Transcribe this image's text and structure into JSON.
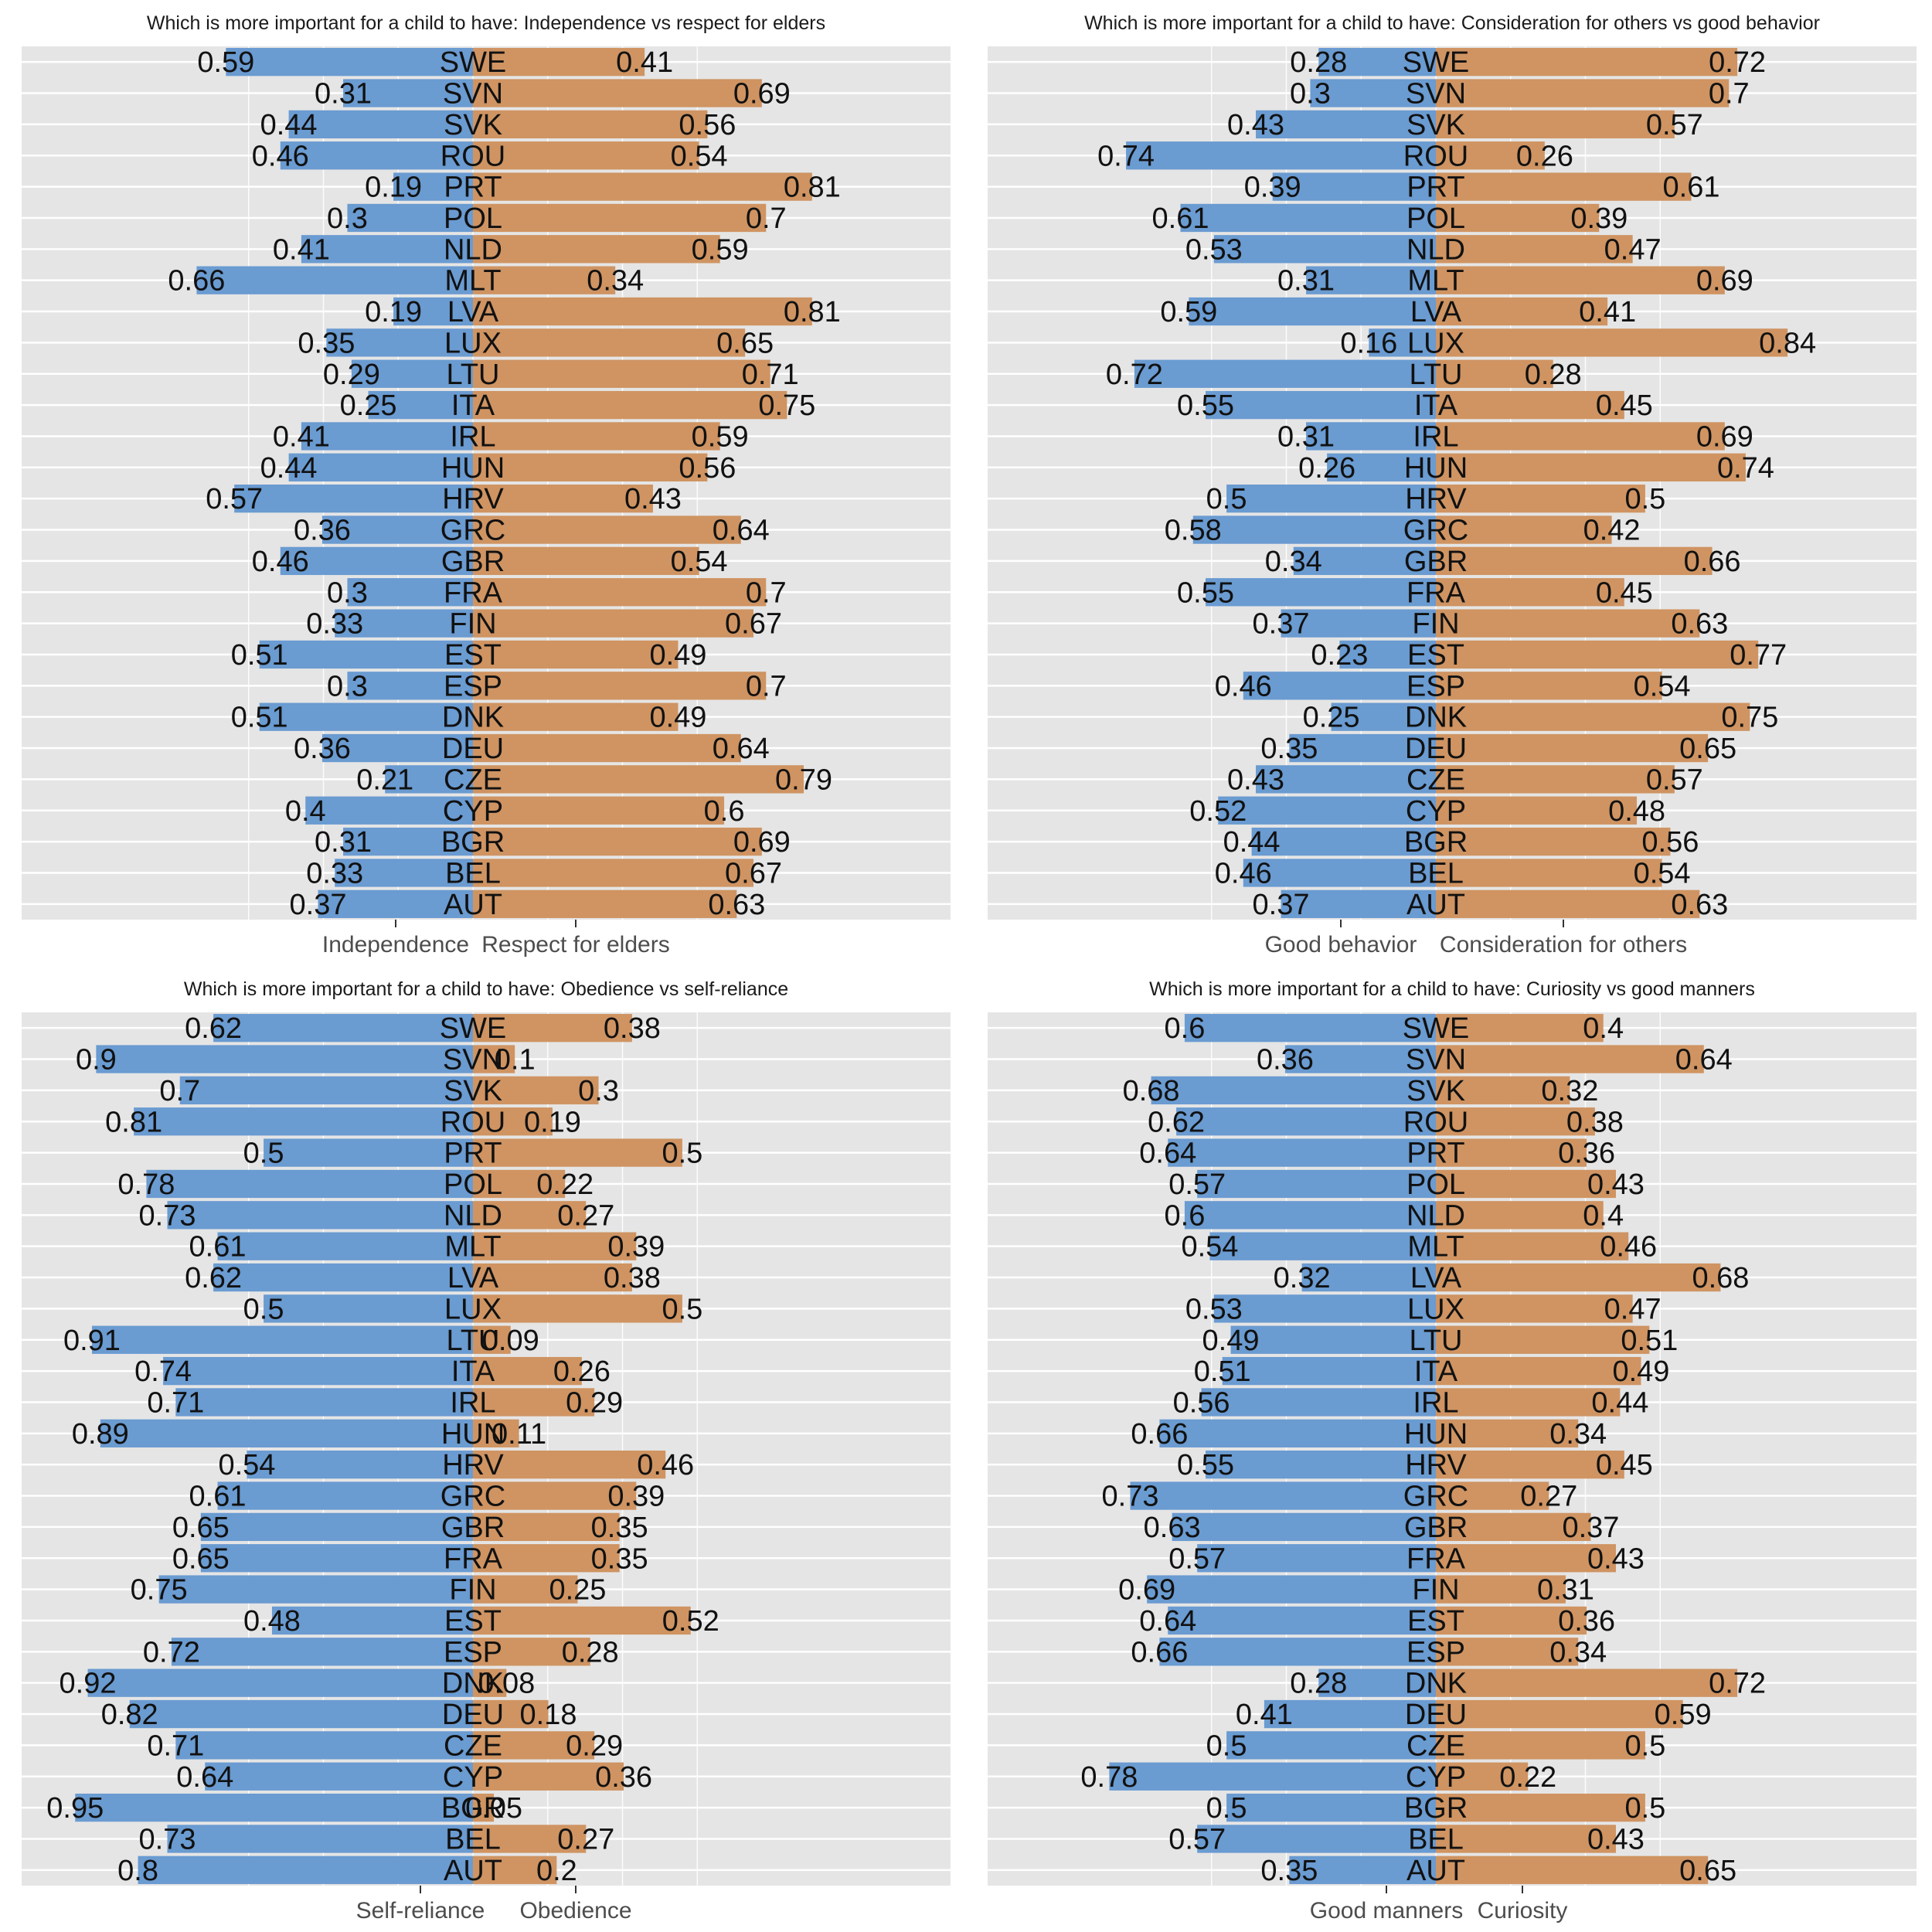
{
  "colors": {
    "left_bar": "#6a9bd1",
    "right_bar": "#cf9462",
    "panel_bg": "#e5e5e5",
    "grid": "#ffffff",
    "text": "#111111"
  },
  "chart_data": [
    {
      "type": "bar",
      "orientation": "horizontal-diverging",
      "title": "Which is more important for a child to have: Independence vs respect for elders",
      "left_label": "Independence",
      "right_label": "Respect for elders",
      "categories": [
        "SWE",
        "SVN",
        "SVK",
        "ROU",
        "PRT",
        "POL",
        "NLD",
        "MLT",
        "LVA",
        "LUX",
        "LTU",
        "ITA",
        "IRL",
        "HUN",
        "HRV",
        "GRC",
        "GBR",
        "FRA",
        "FIN",
        "EST",
        "ESP",
        "DNK",
        "DEU",
        "CZE",
        "CYP",
        "BGR",
        "BEL",
        "AUT"
      ],
      "series": [
        {
          "name": "Independence",
          "values": [
            0.59,
            0.31,
            0.44,
            0.46,
            0.19,
            0.3,
            0.41,
            0.66,
            0.19,
            0.35,
            0.29,
            0.25,
            0.41,
            0.44,
            0.57,
            0.36,
            0.46,
            0.3,
            0.33,
            0.51,
            0.3,
            0.51,
            0.36,
            0.21,
            0.4,
            0.31,
            0.33,
            0.37
          ]
        },
        {
          "name": "Respect for elders",
          "values": [
            0.41,
            0.69,
            0.56,
            0.54,
            0.81,
            0.7,
            0.59,
            0.34,
            0.81,
            0.65,
            0.71,
            0.75,
            0.59,
            0.56,
            0.43,
            0.64,
            0.54,
            0.7,
            0.67,
            0.49,
            0.7,
            0.49,
            0.64,
            0.79,
            0.6,
            0.69,
            0.67,
            0.63
          ]
        }
      ],
      "grid": true
    },
    {
      "type": "bar",
      "orientation": "horizontal-diverging",
      "title": "Which is more important for a child to have: Consideration for others vs good behavior",
      "left_label": "Good behavior",
      "right_label": "Consideration for others",
      "categories": [
        "SWE",
        "SVN",
        "SVK",
        "ROU",
        "PRT",
        "POL",
        "NLD",
        "MLT",
        "LVA",
        "LUX",
        "LTU",
        "ITA",
        "IRL",
        "HUN",
        "HRV",
        "GRC",
        "GBR",
        "FRA",
        "FIN",
        "EST",
        "ESP",
        "DNK",
        "DEU",
        "CZE",
        "CYP",
        "BGR",
        "BEL",
        "AUT"
      ],
      "series": [
        {
          "name": "Good behavior",
          "values": [
            0.28,
            0.3,
            0.43,
            0.74,
            0.39,
            0.61,
            0.53,
            0.31,
            0.59,
            0.16,
            0.72,
            0.55,
            0.31,
            0.26,
            0.5,
            0.58,
            0.34,
            0.55,
            0.37,
            0.23,
            0.46,
            0.25,
            0.35,
            0.43,
            0.52,
            0.44,
            0.46,
            0.37
          ]
        },
        {
          "name": "Consideration for others",
          "values": [
            0.72,
            0.7,
            0.57,
            0.26,
            0.61,
            0.39,
            0.47,
            0.69,
            0.41,
            0.84,
            0.28,
            0.45,
            0.69,
            0.74,
            0.5,
            0.42,
            0.66,
            0.45,
            0.63,
            0.77,
            0.54,
            0.75,
            0.65,
            0.57,
            0.48,
            0.56,
            0.54,
            0.63
          ]
        }
      ],
      "grid": true
    },
    {
      "type": "bar",
      "orientation": "horizontal-diverging",
      "title": "Which is more important for a child to have: Obedience vs self-reliance",
      "left_label": "Self-reliance",
      "right_label": "Obedience",
      "categories": [
        "SWE",
        "SVN",
        "SVK",
        "ROU",
        "PRT",
        "POL",
        "NLD",
        "MLT",
        "LVA",
        "LUX",
        "LTU",
        "ITA",
        "IRL",
        "HUN",
        "HRV",
        "GRC",
        "GBR",
        "FRA",
        "FIN",
        "EST",
        "ESP",
        "DNK",
        "DEU",
        "CZE",
        "CYP",
        "BGR",
        "BEL",
        "AUT"
      ],
      "series": [
        {
          "name": "Self-reliance",
          "values": [
            0.62,
            0.9,
            0.7,
            0.81,
            0.5,
            0.78,
            0.73,
            0.61,
            0.62,
            0.5,
            0.91,
            0.74,
            0.71,
            0.89,
            0.54,
            0.61,
            0.65,
            0.65,
            0.75,
            0.48,
            0.72,
            0.92,
            0.82,
            0.71,
            0.64,
            0.95,
            0.73,
            0.8
          ]
        },
        {
          "name": "Obedience",
          "values": [
            0.38,
            0.1,
            0.3,
            0.19,
            0.5,
            0.22,
            0.27,
            0.39,
            0.38,
            0.5,
            0.09,
            0.26,
            0.29,
            0.11,
            0.46,
            0.39,
            0.35,
            0.35,
            0.25,
            0.52,
            0.28,
            0.08,
            0.18,
            0.29,
            0.36,
            0.05,
            0.27,
            0.2
          ]
        }
      ],
      "grid": true
    },
    {
      "type": "bar",
      "orientation": "horizontal-diverging",
      "title": "Which is more important for a child to have: Curiosity vs good manners",
      "left_label": "Good manners",
      "right_label": "Curiosity",
      "categories": [
        "SWE",
        "SVN",
        "SVK",
        "ROU",
        "PRT",
        "POL",
        "NLD",
        "MLT",
        "LVA",
        "LUX",
        "LTU",
        "ITA",
        "IRL",
        "HUN",
        "HRV",
        "GRC",
        "GBR",
        "FRA",
        "FIN",
        "EST",
        "ESP",
        "DNK",
        "DEU",
        "CZE",
        "CYP",
        "BGR",
        "BEL",
        "AUT"
      ],
      "series": [
        {
          "name": "Good manners",
          "values": [
            0.6,
            0.36,
            0.68,
            0.62,
            0.64,
            0.57,
            0.6,
            0.54,
            0.32,
            0.53,
            0.49,
            0.51,
            0.56,
            0.66,
            0.55,
            0.73,
            0.63,
            0.57,
            0.69,
            0.64,
            0.66,
            0.28,
            0.41,
            0.5,
            0.78,
            0.5,
            0.57,
            0.35
          ]
        },
        {
          "name": "Curiosity",
          "values": [
            0.4,
            0.64,
            0.32,
            0.38,
            0.36,
            0.43,
            0.4,
            0.46,
            0.68,
            0.47,
            0.51,
            0.49,
            0.44,
            0.34,
            0.45,
            0.27,
            0.37,
            0.43,
            0.31,
            0.36,
            0.34,
            0.72,
            0.59,
            0.5,
            0.22,
            0.5,
            0.43,
            0.65
          ]
        }
      ],
      "grid": true
    }
  ]
}
